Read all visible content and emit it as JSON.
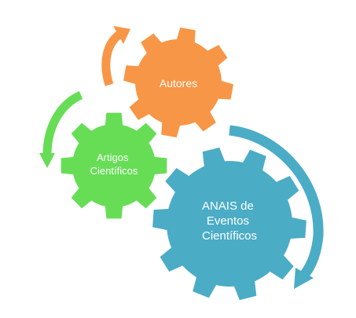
{
  "gears": [
    {
      "id": "autores",
      "lines": [
        "Autores"
      ],
      "color": "#F79646"
    },
    {
      "id": "artigos",
      "lines": [
        "Artigos",
        "Científicos"
      ],
      "color": "#66DD55"
    },
    {
      "id": "anais",
      "lines": [
        "ANAIS de",
        "Eventos",
        "Científicos"
      ],
      "color": "#4BACC6"
    }
  ],
  "arrows": [
    {
      "id": "orange-arrow",
      "color": "#F79646"
    },
    {
      "id": "green-arrow",
      "color": "#66DD55"
    },
    {
      "id": "blue-arrow",
      "color": "#4BACC6"
    }
  ]
}
